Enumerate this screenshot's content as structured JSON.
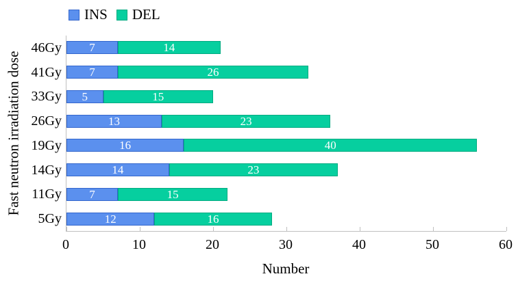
{
  "chart_data": {
    "type": "bar",
    "orientation": "horizontal",
    "stacked": true,
    "title": "",
    "xlabel": "Number",
    "ylabel": "Fast neutron irradiation dose",
    "categories": [
      "46Gy",
      "41Gy",
      "33Gy",
      "26Gy",
      "19Gy",
      "14Gy",
      "11Gy",
      "5Gy"
    ],
    "series": [
      {
        "name": "INS",
        "color": "#5b90ee",
        "border_color": "#3265cc",
        "values": [
          7,
          7,
          5,
          13,
          16,
          14,
          7,
          12
        ]
      },
      {
        "name": "DEL",
        "color": "#06cf9f",
        "border_color": "#00aa80",
        "values": [
          14,
          26,
          15,
          23,
          40,
          23,
          15,
          16
        ]
      }
    ],
    "totals": [
      21,
      33,
      20,
      36,
      56,
      37,
      22,
      28
    ],
    "xlim": [
      0,
      60
    ],
    "xticks": [
      0,
      10,
      20,
      30,
      40,
      50,
      60
    ],
    "legend_position": "top",
    "grid": false,
    "axis_color": "#bfbfbf",
    "value_label_color": "#ffffff"
  }
}
